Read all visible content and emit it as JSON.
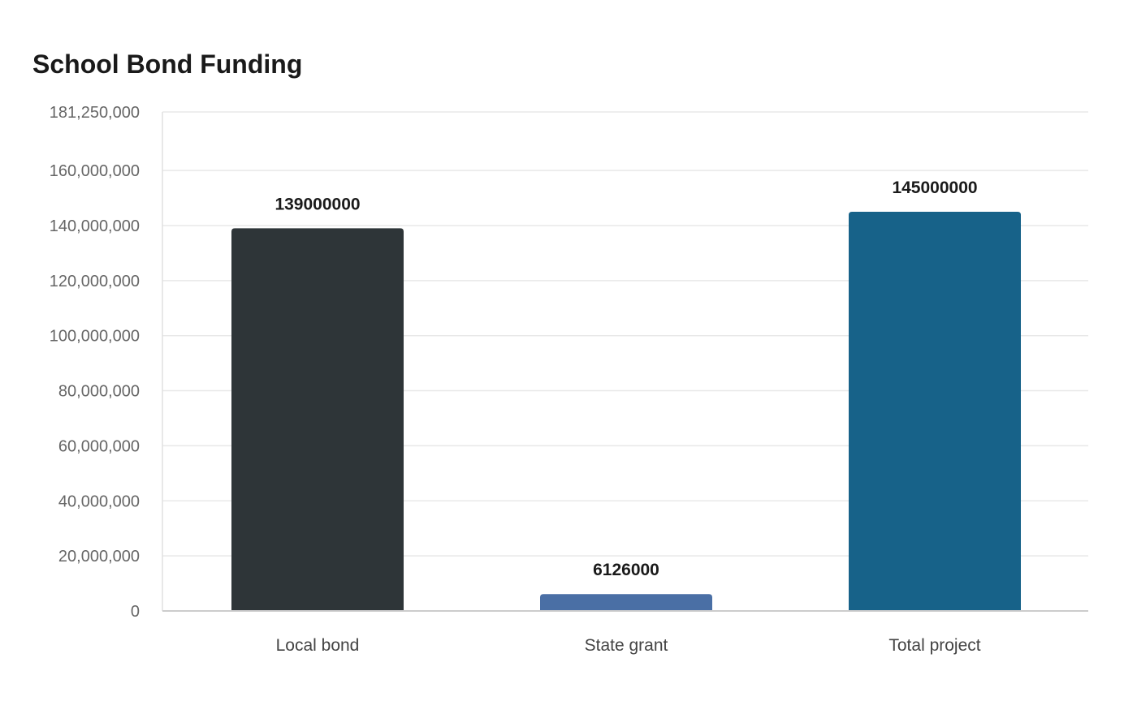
{
  "chart_data": {
    "type": "bar",
    "title": "School Bond Funding",
    "xlabel": "",
    "ylabel": "",
    "categories": [
      "Local bond",
      "State grant",
      "Total project"
    ],
    "values": [
      139000000,
      6126000,
      145000000
    ],
    "value_labels": [
      "139000000",
      "6126000",
      "145000000"
    ],
    "colors": [
      "#2e3538",
      "#4a6fa5",
      "#176289"
    ],
    "ylim": [
      0,
      181250000
    ],
    "yticks": [
      0,
      20000000,
      40000000,
      60000000,
      80000000,
      100000000,
      120000000,
      140000000,
      160000000,
      181250000
    ],
    "ytick_labels": [
      "0",
      "20,000,000",
      "40,000,000",
      "60,000,000",
      "80,000,000",
      "100,000,000",
      "120,000,000",
      "140,000,000",
      "160,000,000",
      "181,250,000"
    ],
    "grid": true,
    "legend": "none"
  }
}
